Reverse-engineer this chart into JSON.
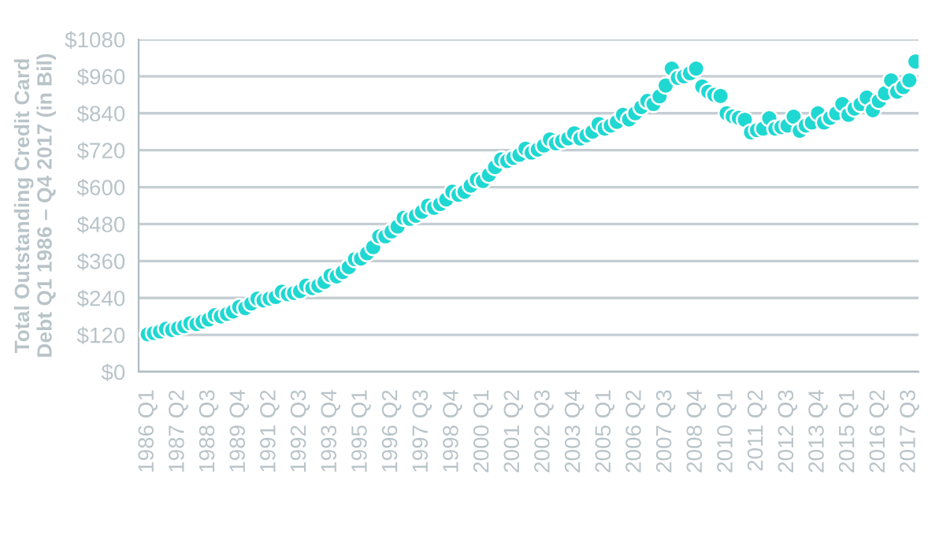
{
  "chart_data": {
    "type": "scatter",
    "ylabel": "Total Outstanding Credit Card\nDebt Q1 1986 – Q4 2017 (in Bil)",
    "categories": [
      "1986 Q1",
      null,
      null,
      null,
      null,
      "1987 Q2",
      null,
      null,
      null,
      null,
      "1988 Q3",
      null,
      null,
      null,
      null,
      "1989 Q4",
      null,
      null,
      null,
      null,
      "1991 Q2",
      null,
      null,
      null,
      null,
      "1992 Q3",
      null,
      null,
      null,
      null,
      "1993 Q4",
      null,
      null,
      null,
      null,
      "1995 Q1",
      null,
      null,
      null,
      null,
      "1996 Q2",
      null,
      null,
      null,
      null,
      "1997 Q3",
      null,
      null,
      null,
      null,
      "1998 Q4",
      null,
      null,
      null,
      null,
      "2000 Q1",
      null,
      null,
      null,
      null,
      "2001 Q2",
      null,
      null,
      null,
      null,
      "2002 Q3",
      null,
      null,
      null,
      null,
      "2003 Q4",
      null,
      null,
      null,
      null,
      "2005 Q1",
      null,
      null,
      null,
      null,
      "2006 Q2",
      null,
      null,
      null,
      null,
      "2007 Q3",
      null,
      null,
      null,
      null,
      "2008 Q4",
      null,
      null,
      null,
      null,
      "2010 Q1",
      null,
      null,
      null,
      null,
      "2011 Q2",
      null,
      null,
      null,
      null,
      "2012 Q3",
      null,
      null,
      null,
      null,
      "2013 Q4",
      null,
      null,
      null,
      null,
      "2015 Q1",
      null,
      null,
      null,
      null,
      "2016 Q2",
      null,
      null,
      null,
      null,
      "2017 Q3",
      null
    ],
    "values": [
      122,
      126,
      131,
      140,
      136,
      142,
      148,
      158,
      155,
      163,
      170,
      184,
      180,
      188,
      196,
      211,
      207,
      222,
      238,
      232,
      238,
      243,
      260,
      252,
      256,
      262,
      280,
      272,
      280,
      292,
      313,
      310,
      324,
      340,
      366,
      368,
      385,
      405,
      440,
      440,
      456,
      472,
      500,
      497,
      507,
      520,
      540,
      533,
      545,
      560,
      585,
      575,
      585,
      605,
      625,
      620,
      640,
      665,
      690,
      685,
      695,
      705,
      725,
      712,
      722,
      735,
      755,
      742,
      750,
      758,
      775,
      758,
      768,
      780,
      805,
      790,
      800,
      812,
      835,
      820,
      840,
      860,
      880,
      870,
      895,
      930,
      985,
      955,
      960,
      970,
      985,
      927,
      910,
      900,
      896,
      840,
      830,
      825,
      819,
      778,
      785,
      790,
      824,
      790,
      795,
      800,
      829,
      783,
      800,
      810,
      840,
      810,
      825,
      840,
      870,
      835,
      855,
      870,
      891,
      850,
      880,
      905,
      947,
      910,
      925,
      947,
      1008
    ],
    "color": "#1fd8d2",
    "marker": "circle",
    "ylim": [
      0,
      1080
    ],
    "yticks": [
      {
        "value": 0,
        "label": "$0"
      },
      {
        "value": 120,
        "label": "$120"
      },
      {
        "value": 240,
        "label": "$240"
      },
      {
        "value": 360,
        "label": "$360"
      },
      {
        "value": 480,
        "label": "$480"
      },
      {
        "value": 600,
        "label": "$600"
      },
      {
        "value": 720,
        "label": "$720"
      },
      {
        "value": 840,
        "label": "$840"
      },
      {
        "value": 960,
        "label": "$960"
      },
      {
        "value": 1080,
        "label": "$1080"
      }
    ],
    "grid": "y"
  }
}
